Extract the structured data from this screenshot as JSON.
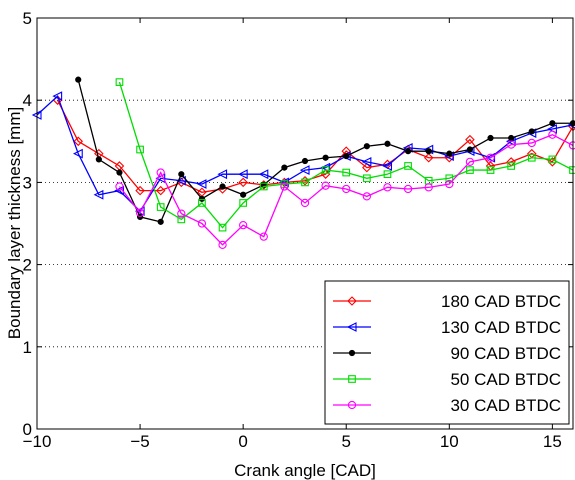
{
  "chart_data": {
    "type": "line",
    "xlabel": "Crank angle [CAD]",
    "ylabel": "Boundary layer thickness [mm]",
    "xlim": [
      -10,
      16
    ],
    "ylim": [
      0,
      5
    ],
    "xticks": [
      -10,
      -5,
      0,
      5,
      10,
      15
    ],
    "yticks": [
      0,
      1,
      2,
      3,
      4,
      5
    ],
    "grid": "horizontal dotted",
    "legend_position": "bottom-right",
    "series": [
      {
        "name": "180 CAD BTDC",
        "color": "#ff0000",
        "marker": "diamond",
        "x": [
          -9,
          -8,
          -7,
          -6,
          -5,
          -4,
          -3,
          -2,
          -1,
          0,
          1,
          2,
          3,
          4,
          5,
          6,
          7,
          8,
          9,
          10,
          11,
          12,
          13,
          14,
          15,
          16
        ],
        "y": [
          4.0,
          3.5,
          3.35,
          3.2,
          2.9,
          2.9,
          3.0,
          2.88,
          2.92,
          3.0,
          2.97,
          3.0,
          3.02,
          3.1,
          3.38,
          3.18,
          3.22,
          3.4,
          3.3,
          3.3,
          3.52,
          3.2,
          3.25,
          3.35,
          3.25,
          3.68
        ]
      },
      {
        "name": "130 CAD BTDC",
        "color": "#0000ff",
        "marker": "triangle-left",
        "x": [
          -10,
          -9,
          -8,
          -7,
          -6,
          -5,
          -4,
          -3,
          -2,
          -1,
          0,
          1,
          2,
          3,
          4,
          5,
          6,
          7,
          8,
          9,
          10,
          11,
          12,
          13,
          14,
          15,
          16
        ],
        "y": [
          3.82,
          4.05,
          3.35,
          2.85,
          2.9,
          2.65,
          3.05,
          3.02,
          2.98,
          3.1,
          3.1,
          3.1,
          3.0,
          3.15,
          3.18,
          3.32,
          3.25,
          3.2,
          3.42,
          3.4,
          3.32,
          3.38,
          3.3,
          3.5,
          3.6,
          3.65,
          3.7
        ]
      },
      {
        "name": "90 CAD BTDC",
        "color": "#000000",
        "marker": "dot",
        "x": [
          -8,
          -7,
          -6,
          -5,
          -4,
          -3,
          -2,
          -1,
          0,
          1,
          2,
          3,
          4,
          5,
          6,
          7,
          8,
          9,
          10,
          11,
          12,
          13,
          14,
          15,
          16
        ],
        "y": [
          4.25,
          3.28,
          3.12,
          2.58,
          2.52,
          3.1,
          2.8,
          2.95,
          2.85,
          2.97,
          3.18,
          3.26,
          3.3,
          3.32,
          3.44,
          3.47,
          3.38,
          3.38,
          3.35,
          3.4,
          3.54,
          3.54,
          3.62,
          3.72,
          3.72
        ]
      },
      {
        "name": "50 CAD BTDC",
        "color": "#00dd00",
        "marker": "square",
        "x": [
          -6,
          -5,
          -4,
          -3,
          -2,
          -1,
          0,
          1,
          2,
          3,
          4,
          5,
          6,
          7,
          8,
          9,
          10,
          11,
          12,
          13,
          14,
          15,
          16
        ],
        "y": [
          4.22,
          3.4,
          2.7,
          2.55,
          2.75,
          2.45,
          2.75,
          2.95,
          2.98,
          3.0,
          3.15,
          3.12,
          3.05,
          3.1,
          3.2,
          3.02,
          3.05,
          3.15,
          3.15,
          3.2,
          3.3,
          3.28,
          3.15
        ]
      },
      {
        "name": "30 CAD BTDC",
        "color": "#ff00ff",
        "marker": "circle",
        "x": [
          -6,
          -5,
          -4,
          -3,
          -2,
          -1,
          0,
          1,
          2,
          3,
          4,
          5,
          6,
          7,
          8,
          9,
          10,
          11,
          12,
          13,
          14,
          15,
          16
        ],
        "y": [
          2.95,
          2.63,
          3.12,
          2.62,
          2.5,
          2.24,
          2.48,
          2.34,
          2.95,
          2.75,
          2.96,
          2.92,
          2.83,
          2.94,
          2.92,
          2.94,
          2.98,
          3.25,
          3.3,
          3.46,
          3.48,
          3.58,
          3.45
        ]
      }
    ]
  }
}
